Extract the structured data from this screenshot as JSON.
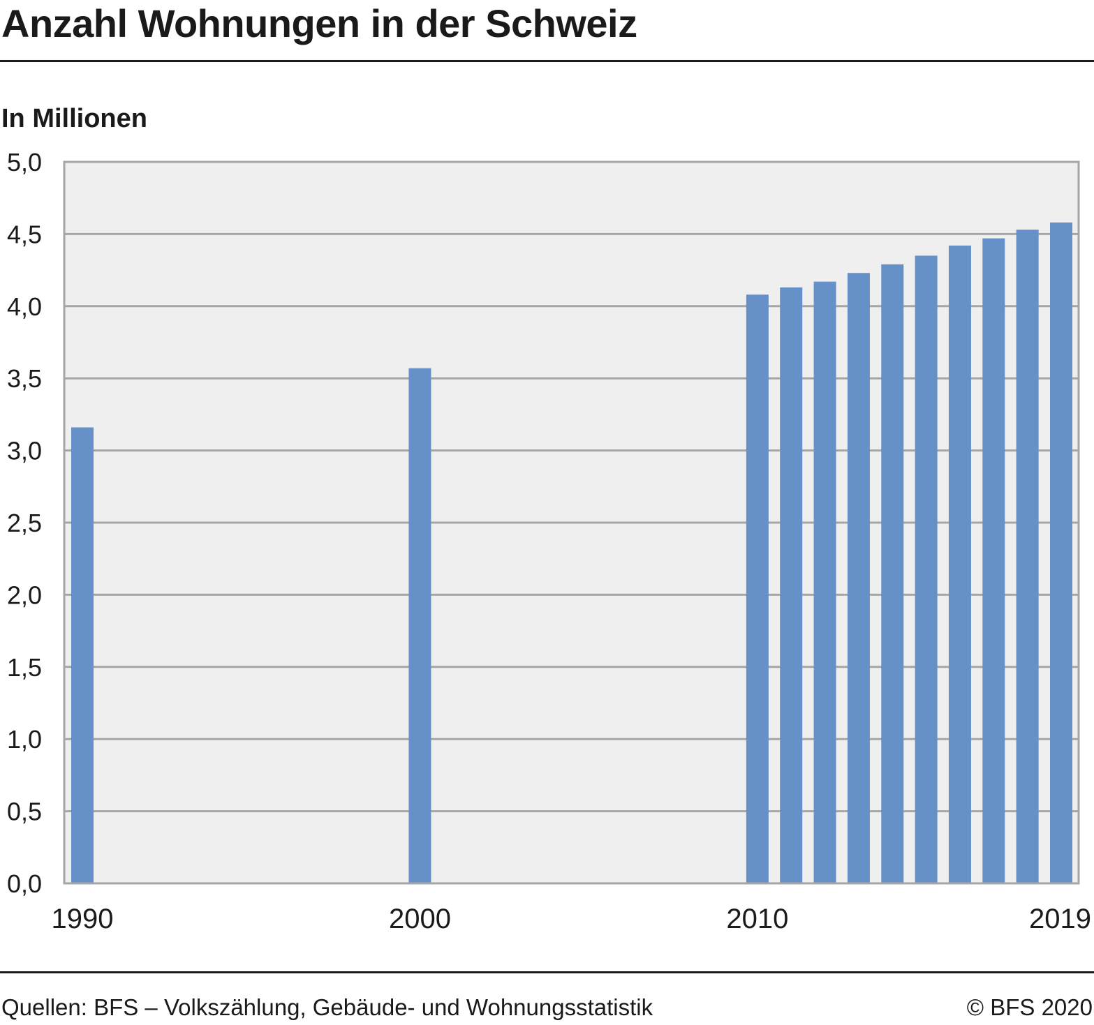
{
  "header": {
    "title": "Anzahl Wohnungen in der Schweiz",
    "unit_label": "In Millionen"
  },
  "footer": {
    "source": "Quellen: BFS – Volkszählung, Gebäude- und Wohnungsstatistik",
    "copyright": "© BFS 2020"
  },
  "chart_data": {
    "type": "bar",
    "title": "Anzahl Wohnungen in der Schweiz",
    "ylabel": "In Millionen",
    "xlabel": "",
    "ylim": [
      0,
      5
    ],
    "yticks": [
      "0,0",
      "0,5",
      "1,0",
      "1,5",
      "2,0",
      "2,5",
      "3,0",
      "3,5",
      "4,0",
      "4,5",
      "5,0"
    ],
    "ytick_values": [
      0,
      0.5,
      1,
      1.5,
      2,
      2.5,
      3,
      3.5,
      4,
      4.5,
      5
    ],
    "xlim": [
      1990,
      2019
    ],
    "xticks": [
      "1990",
      "2000",
      "2010",
      "2019"
    ],
    "xtick_values": [
      1990,
      2000,
      2010,
      2019
    ],
    "grid": true,
    "colors": {
      "bar": "#6690c8",
      "plot_background": "#efefef",
      "grid": "#a6a6a6",
      "axis_text": "#1a1a1a"
    },
    "series": [
      {
        "x": [
          1990,
          2000,
          2010,
          2011,
          2012,
          2013,
          2014,
          2015,
          2016,
          2017,
          2018,
          2019
        ],
        "values": [
          3.16,
          3.57,
          4.08,
          4.13,
          4.17,
          4.23,
          4.29,
          4.35,
          4.42,
          4.47,
          4.53,
          4.58
        ]
      }
    ]
  }
}
